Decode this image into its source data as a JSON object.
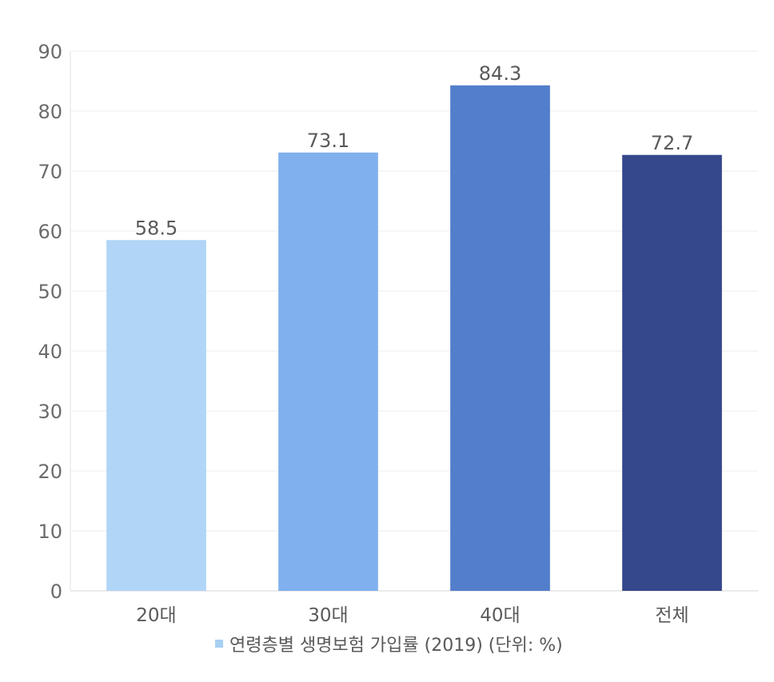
{
  "chart_data": {
    "type": "bar",
    "categories": [
      "20대",
      "30대",
      "40대",
      "전체"
    ],
    "values": [
      58.5,
      73.1,
      84.3,
      72.7
    ],
    "data_labels": [
      "58.5",
      "73.1",
      "84.3",
      "72.7"
    ],
    "bar_colors": [
      "#b0d5f6",
      "#80b1ee",
      "#527ecb",
      "#35488c"
    ],
    "ylim": [
      0,
      90
    ],
    "yticks": [
      0,
      10,
      20,
      30,
      40,
      50,
      60,
      70,
      80,
      90
    ],
    "grid": true,
    "legend": {
      "label": "연령층별 생명보험 가입률 (2019) (단위: %)",
      "color": "#a8d0f3",
      "placement": "bottom-center"
    }
  }
}
